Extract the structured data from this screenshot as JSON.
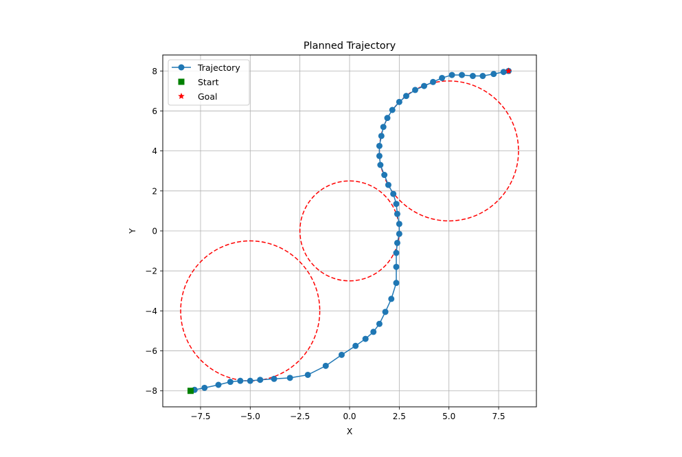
{
  "chart_data": {
    "type": "line",
    "title": "Planned Trajectory",
    "xlabel": "X",
    "ylabel": "Y",
    "xlim": [
      -9.4,
      9.4
    ],
    "ylim": [
      -8.8,
      8.8
    ],
    "xticks": [
      -7.5,
      -5.0,
      -2.5,
      0.0,
      2.5,
      5.0,
      7.5
    ],
    "yticks": [
      -8,
      -6,
      -4,
      -2,
      0,
      2,
      4,
      6,
      8
    ],
    "xtick_labels": [
      "−7.5",
      "−5.0",
      "−2.5",
      "0.0",
      "2.5",
      "5.0",
      "7.5"
    ],
    "ytick_labels": [
      "−8",
      "−6",
      "−4",
      "−2",
      "0",
      "2",
      "4",
      "6",
      "8"
    ],
    "grid": true,
    "legend_position": "top-left",
    "series": [
      {
        "name": "Trajectory",
        "color": "#1f77b4",
        "marker": "circle",
        "x": [
          -7.8,
          -7.3,
          -6.6,
          -6.0,
          -5.5,
          -5.0,
          -4.5,
          -3.8,
          -3.0,
          -2.1,
          -1.2,
          -0.4,
          0.3,
          0.8,
          1.2,
          1.5,
          1.8,
          2.1,
          2.35,
          2.35,
          2.35,
          2.4,
          2.5,
          2.5,
          2.4,
          2.35,
          2.2,
          1.95,
          1.75,
          1.55,
          1.5,
          1.5,
          1.6,
          1.7,
          1.9,
          2.15,
          2.5,
          2.85,
          3.3,
          3.75,
          4.2,
          4.65,
          5.15,
          5.65,
          6.2,
          6.7,
          7.25,
          7.75,
          8.0
        ],
        "y": [
          -7.95,
          -7.85,
          -7.7,
          -7.55,
          -7.5,
          -7.5,
          -7.45,
          -7.4,
          -7.35,
          -7.2,
          -6.75,
          -6.2,
          -5.75,
          -5.4,
          -5.05,
          -4.65,
          -4.05,
          -3.4,
          -2.6,
          -1.8,
          -1.1,
          -0.6,
          -0.15,
          0.35,
          0.85,
          1.35,
          1.85,
          2.3,
          2.8,
          3.3,
          3.75,
          4.25,
          4.75,
          5.2,
          5.65,
          6.05,
          6.45,
          6.75,
          7.05,
          7.25,
          7.45,
          7.65,
          7.8,
          7.8,
          7.75,
          7.75,
          7.85,
          7.95,
          8.0
        ]
      },
      {
        "name": "Start",
        "color": "#008000",
        "marker": "square",
        "x": [
          -8.0
        ],
        "y": [
          -8.0
        ]
      },
      {
        "name": "Goal",
        "color": "#ff0000",
        "marker": "star",
        "x": [
          8.0
        ],
        "y": [
          8.0
        ]
      }
    ],
    "obstacles": [
      {
        "cx": 0.0,
        "cy": 0.0,
        "r": 2.5,
        "color": "#ff0000"
      },
      {
        "cx": 5.0,
        "cy": 4.0,
        "r": 3.5,
        "color": "#ff0000"
      },
      {
        "cx": -5.0,
        "cy": -4.0,
        "r": 3.5,
        "color": "#ff0000"
      }
    ]
  }
}
